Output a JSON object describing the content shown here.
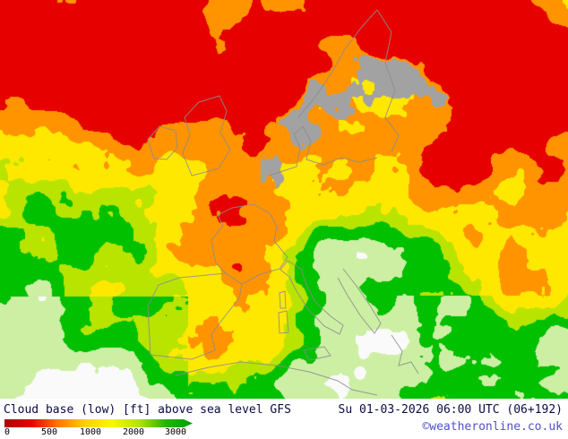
{
  "map": {
    "layer_title": "Cloud base (low) [ft] above sea level GFS",
    "valid_time": "Su 01-03-2026 06:00 UTC (06+192)",
    "credit": "©weatheronline.co.uk"
  },
  "legend": {
    "ticks": [
      "0",
      "500",
      "1000",
      "2000",
      "3000"
    ],
    "gradient": [
      "#b00000",
      "#e80000",
      "#ff7800",
      "#ffd000",
      "#f8f800",
      "#b4e400",
      "#28b400",
      "#00a000"
    ]
  },
  "palette": {
    "red": "#e60000",
    "orange": "#ff9400",
    "yellow": "#ffe800",
    "yellow_green": "#b8e400",
    "green": "#00c000",
    "pale_green": "#ccefa4",
    "white": "#fafafa",
    "gray": "#a2a2a2",
    "coast": "#8c8c8c",
    "text": "#0a0a46",
    "credit": "#5050c8"
  }
}
